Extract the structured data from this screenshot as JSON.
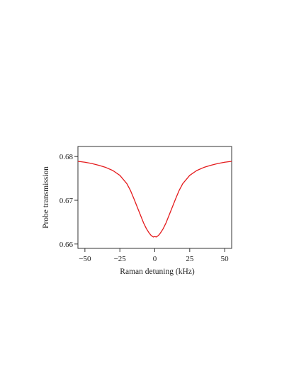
{
  "chart_data": {
    "type": "line",
    "title": "",
    "xlabel": "Raman detuning (kHz)",
    "ylabel": "Probe transmission",
    "xlim": [
      -55,
      55
    ],
    "ylim": [
      0.659,
      0.6823
    ],
    "xticks": [
      -50,
      -25,
      0,
      25,
      50
    ],
    "xtick_labels": [
      "−50",
      "−25",
      "0",
      "25",
      "50"
    ],
    "yticks": [
      0.66,
      0.67,
      0.68
    ],
    "ytick_labels": [
      "0.66",
      "0.67",
      "0.68"
    ],
    "grid": false,
    "legend": "none",
    "series": [
      {
        "color": "#e41a1c",
        "x": [
          -55,
          -50,
          -45,
          -40,
          -35,
          -30,
          -25,
          -20,
          -17.5,
          -15,
          -12.5,
          -10,
          -8,
          -6,
          -4,
          -3,
          -2,
          -1,
          0,
          1,
          2,
          3,
          4,
          6,
          8,
          10,
          12.5,
          15,
          17.5,
          20,
          25,
          30,
          35,
          40,
          45,
          50,
          55
        ],
        "y": [
          0.6789,
          0.6787,
          0.6784,
          0.678,
          0.6775,
          0.6768,
          0.6757,
          0.6738,
          0.6723,
          0.6704,
          0.6684,
          0.6664,
          0.6648,
          0.6635,
          0.6625,
          0.6621,
          0.6618,
          0.6616,
          0.6617,
          0.6616,
          0.6618,
          0.6621,
          0.6625,
          0.6635,
          0.6648,
          0.6664,
          0.6684,
          0.6704,
          0.6723,
          0.6738,
          0.6757,
          0.6768,
          0.6775,
          0.678,
          0.6784,
          0.6787,
          0.6789
        ]
      }
    ]
  }
}
